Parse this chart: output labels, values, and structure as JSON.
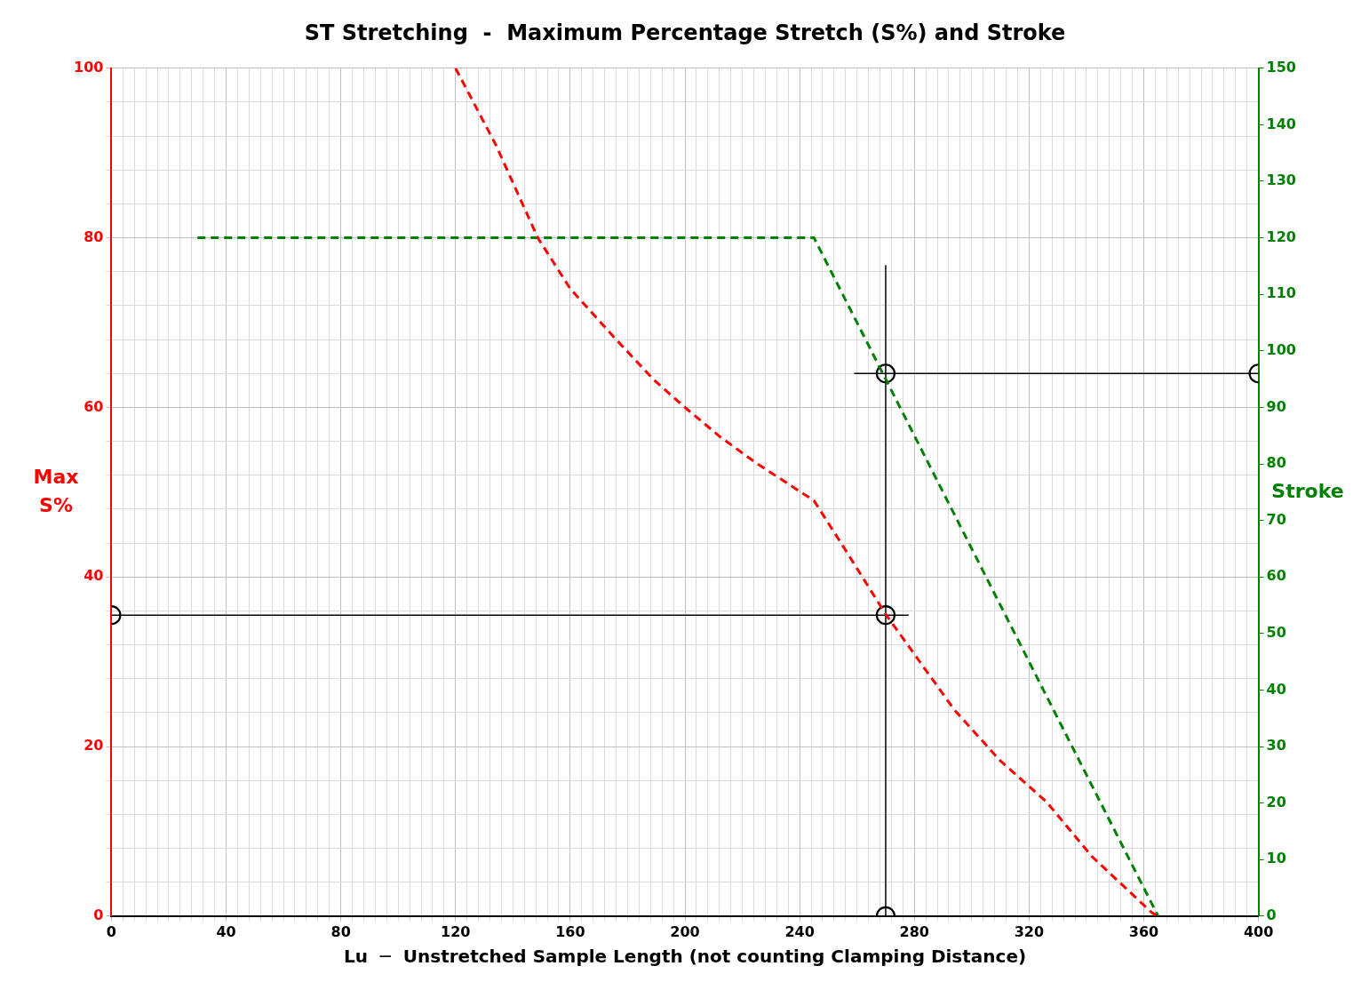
{
  "chart_data": {
    "type": "line",
    "title": "ST Stretching  -  Maximum Percentage Stretch (S%) and Stroke",
    "xlabel": "Lu  ─  Unstretched Sample Length (not counting Clamping Distance)",
    "ylabel": "Max S%",
    "y2label": "Stroke",
    "xlim": [
      0,
      400
    ],
    "ylim": [
      0,
      100
    ],
    "y2lim": [
      0,
      150
    ],
    "xticks": [
      0,
      {
        "value": 4,
        "label": null
      },
      {
        "value": 8,
        "label": null
      },
      {
        "value": 12,
        "label": null
      },
      {
        "value": 16,
        "label": null
      },
      {
        "value": 20,
        "label": null
      },
      {
        "value": 24,
        "label": null
      },
      {
        "value": 28,
        "label": null
      },
      {
        "value": 32,
        "label": null
      },
      {
        "value": 36,
        "label": null
      },
      40,
      {
        "value": 44,
        "label": null
      },
      {
        "value": 48,
        "label": null
      },
      {
        "value": 52,
        "label": null
      },
      {
        "value": 56,
        "label": null
      },
      {
        "value": 60,
        "label": null
      },
      {
        "value": 64,
        "label": null
      },
      {
        "value": 68,
        "label": null
      },
      {
        "value": 72,
        "label": null
      },
      {
        "value": 76,
        "label": null
      },
      80,
      {
        "value": 84,
        "label": null
      },
      {
        "value": 88,
        "label": null
      },
      {
        "value": 92,
        "label": null
      },
      {
        "value": 96,
        "label": null
      },
      {
        "value": 100,
        "label": null
      },
      {
        "value": 104,
        "label": null
      },
      {
        "value": 108,
        "label": null
      },
      {
        "value": 112,
        "label": null
      },
      {
        "value": 116,
        "label": null
      },
      120,
      {
        "value": 124,
        "label": null
      },
      {
        "value": 128,
        "label": null
      },
      {
        "value": 132,
        "label": null
      },
      {
        "value": 136,
        "label": null
      },
      {
        "value": 140,
        "label": null
      },
      {
        "value": 144,
        "label": null
      },
      {
        "value": 148,
        "label": null
      },
      {
        "value": 152,
        "label": null
      },
      {
        "value": 156,
        "label": null
      },
      160,
      {
        "value": 164,
        "label": null
      },
      {
        "value": 168,
        "label": null
      },
      {
        "value": 172,
        "label": null
      },
      {
        "value": 176,
        "label": null
      },
      {
        "value": 180,
        "label": null
      },
      {
        "value": 184,
        "label": null
      },
      {
        "value": 188,
        "label": null
      },
      {
        "value": 192,
        "label": null
      },
      {
        "value": 196,
        "label": null
      },
      200,
      {
        "value": 204,
        "label": null
      },
      {
        "value": 208,
        "label": null
      },
      {
        "value": 212,
        "label": null
      },
      {
        "value": 216,
        "label": null
      },
      {
        "value": 220,
        "label": null
      },
      {
        "value": 224,
        "label": null
      },
      {
        "value": 228,
        "label": null
      },
      {
        "value": 232,
        "label": null
      },
      {
        "value": 236,
        "label": null
      },
      240,
      {
        "value": 244,
        "label": null
      },
      {
        "value": 248,
        "label": null
      },
      {
        "value": 252,
        "label": null
      },
      {
        "value": 256,
        "label": null
      },
      {
        "value": 260,
        "label": null
      },
      {
        "value": 264,
        "label": null
      },
      {
        "value": 268,
        "label": null
      },
      {
        "value": 272,
        "label": null
      },
      {
        "value": 276,
        "label": null
      },
      280,
      {
        "value": 284,
        "label": null
      },
      {
        "value": 288,
        "label": null
      },
      {
        "value": 292,
        "label": null
      },
      {
        "value": 296,
        "label": null
      },
      {
        "value": 300,
        "label": null
      },
      {
        "value": 304,
        "label": null
      },
      {
        "value": 308,
        "label": null
      },
      {
        "value": 312,
        "label": null
      },
      {
        "value": 316,
        "label": null
      },
      320,
      {
        "value": 324,
        "label": null
      },
      {
        "value": 328,
        "label": null
      },
      {
        "value": 332,
        "label": null
      },
      {
        "value": 336,
        "label": null
      },
      {
        "value": 340,
        "label": null
      },
      {
        "value": 344,
        "label": null
      },
      {
        "value": 348,
        "label": null
      },
      {
        "value": 352,
        "label": null
      },
      {
        "value": 356,
        "label": null
      },
      360,
      {
        "value": 364,
        "label": null
      },
      {
        "value": 368,
        "label": null
      },
      {
        "value": 372,
        "label": null
      },
      {
        "value": 376,
        "label": null
      },
      {
        "value": 380,
        "label": null
      },
      {
        "value": 384,
        "label": null
      },
      {
        "value": 388,
        "label": null
      },
      {
        "value": 392,
        "label": null
      },
      {
        "value": 396,
        "label": null
      },
      400
    ],
    "yticks": [
      0,
      {
        "value": 4,
        "label": null
      },
      {
        "value": 8,
        "label": null
      },
      {
        "value": 12,
        "label": null
      },
      {
        "value": 16,
        "label": null
      },
      20,
      {
        "value": 24,
        "label": null
      },
      {
        "value": 28,
        "label": null
      },
      {
        "value": 32,
        "label": null
      },
      {
        "value": 36,
        "label": null
      },
      40,
      {
        "value": 44,
        "label": null
      },
      {
        "value": 48,
        "label": null
      },
      {
        "value": 52,
        "label": null
      },
      {
        "value": 56,
        "label": null
      },
      60,
      {
        "value": 64,
        "label": null
      },
      {
        "value": 68,
        "label": null
      },
      {
        "value": 72,
        "label": null
      },
      {
        "value": 76,
        "label": null
      },
      80,
      {
        "value": 84,
        "label": null
      },
      {
        "value": 88,
        "label": null
      },
      {
        "value": 92,
        "label": null
      },
      {
        "value": 96,
        "label": null
      },
      100
    ],
    "y2ticks": [
      0,
      10,
      20,
      30,
      40,
      50,
      60,
      70,
      80,
      90,
      100,
      110,
      120,
      130,
      140,
      150
    ],
    "grid": true,
    "legend": false,
    "series": [
      {
        "type": "line",
        "color": "#ff0000",
        "line_style": "dashed",
        "marker": "none",
        "x": [
          120,
          134,
          148.7,
          160,
          176,
          189,
          200,
          212,
          225,
          245,
          255,
          270,
          294,
          310,
          326,
          342,
          362.5,
          364.5
        ],
        "values": [
          100,
          91,
          80,
          74,
          68,
          63.3,
          60,
          56.6,
          53.4,
          49,
          43.7,
          35.6,
          24.3,
          18.3,
          13.5,
          7,
          0.5,
          0
        ]
      },
      {
        "type": "line",
        "color": "#008000",
        "axis": "y2",
        "line_style": "dashed",
        "marker": "none",
        "x": [
          30,
          245,
          365
        ],
        "values": [
          120,
          120,
          0
        ]
      },
      {
        "type": "line",
        "color": "#000000",
        "line_style": "solid",
        "marker": "none",
        "x": [
          0,
          278
        ],
        "values": [
          35.5,
          35.5
        ]
      },
      {
        "type": "line",
        "color": "#000000",
        "line_style": "solid",
        "marker": "none",
        "x": [
          270,
          270
        ],
        "values": [
          0,
          76.8
        ]
      },
      {
        "type": "line",
        "color": "#000000",
        "axis": "y2",
        "line_style": "solid",
        "marker": "none",
        "x": [
          259,
          400
        ],
        "values": [
          96,
          96
        ]
      },
      {
        "type": "scatter",
        "color": "#000000",
        "marker": "circle",
        "x": [
          0,
          270,
          270
        ],
        "values": [
          35.5,
          35.5,
          0
        ]
      },
      {
        "type": "scatter",
        "color": "#000000",
        "axis": "y2",
        "marker": "circle",
        "x": [
          270,
          400
        ],
        "values": [
          96,
          96
        ]
      }
    ]
  }
}
